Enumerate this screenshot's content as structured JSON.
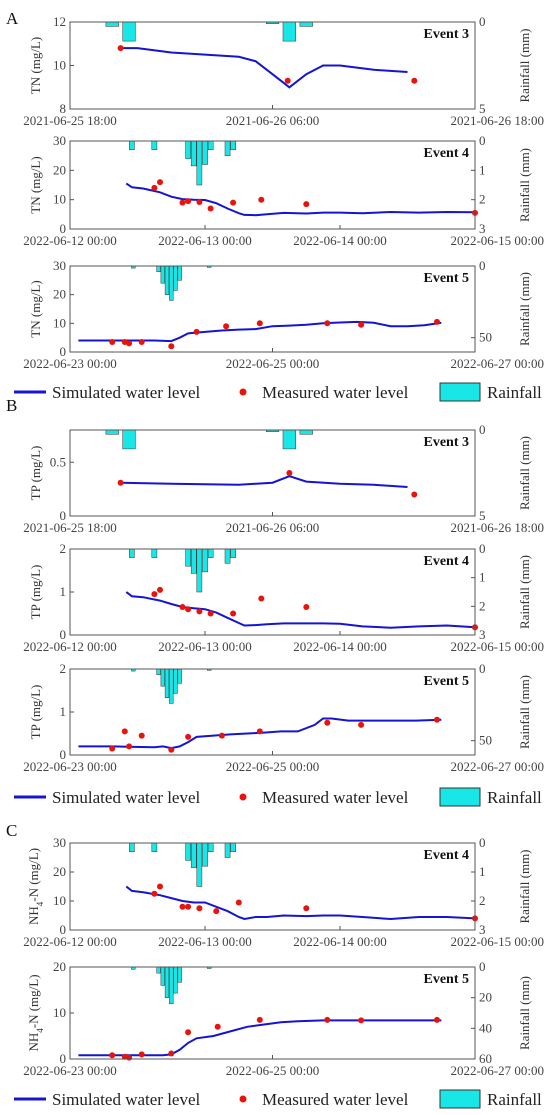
{
  "legend": {
    "simulated": "Simulated water level",
    "measured": "Measured water level",
    "rainfall": "Rainfall"
  },
  "colors": {
    "simulated": "#1414d2",
    "measured": "#e8140c",
    "rainfall_fill": "#19e6e6",
    "rainfall_stroke": "#333333",
    "axis": "#555555"
  },
  "sections": [
    {
      "label": "A"
    },
    {
      "label": "B"
    },
    {
      "label": "C"
    }
  ],
  "chart_data": [
    {
      "type": "line",
      "panel": "A",
      "event": "Event 3",
      "ylabel": "TN (mg/L)",
      "y2label": "Rainfall (mm)",
      "xlim": [
        "2021-06-25 18:00",
        "2021-06-26 18:00"
      ],
      "xrange_hours": 24,
      "xticks": [
        {
          "h": 0,
          "label": "2021-06-25 18:00"
        },
        {
          "h": 12,
          "label": "2021-06-26 06:00"
        },
        {
          "h": 24,
          "label": "2021-06-26 18:00"
        }
      ],
      "ylim": [
        8,
        12
      ],
      "yticks": [
        8,
        10,
        12
      ],
      "y2lim": [
        0,
        5
      ],
      "y2ticks": [
        0,
        5
      ],
      "simulated": {
        "x_hours": [
          3,
          4,
          6,
          8,
          10,
          11,
          12,
          13,
          14,
          15,
          16,
          18,
          20
        ],
        "y": [
          10.8,
          10.8,
          10.6,
          10.5,
          10.4,
          10.2,
          9.6,
          9.0,
          9.6,
          10.0,
          10.0,
          9.8,
          9.7
        ]
      },
      "measured": {
        "x_hours": [
          3,
          12.9,
          20.4
        ],
        "y": [
          10.8,
          9.3,
          9.3
        ]
      },
      "rainfall": {
        "x_hours": [
          2.5,
          3.5,
          12,
          13,
          14
        ],
        "y": [
          0.25,
          1.1,
          0.1,
          1.1,
          0.25
        ]
      }
    },
    {
      "type": "line",
      "panel": "A",
      "event": "Event 4",
      "ylabel": "TN (mg/L)",
      "y2label": "Rainfall (mm)",
      "xlim": [
        "2022-06-12 00:00",
        "2022-06-15 00:00"
      ],
      "xrange_hours": 72,
      "xticks": [
        {
          "h": 0,
          "label": "2022-06-12 00:00"
        },
        {
          "h": 24,
          "label": "2022-06-13 00:00"
        },
        {
          "h": 48,
          "label": "2022-06-14 00:00"
        },
        {
          "h": 72,
          "label": "2022-06-15 00:00"
        }
      ],
      "ylim": [
        0,
        30
      ],
      "yticks": [
        0,
        10,
        20,
        30
      ],
      "y2lim": [
        0,
        3
      ],
      "y2ticks": [
        0,
        1,
        2,
        3
      ],
      "simulated": {
        "x_hours": [
          10,
          11,
          13,
          16,
          18,
          20,
          22,
          24,
          26,
          28,
          30,
          31,
          33,
          35,
          38,
          42,
          45,
          48,
          52,
          57,
          62,
          67,
          72
        ],
        "y": [
          15.5,
          14.2,
          13.8,
          12.5,
          11.0,
          10.2,
          10.0,
          9.9,
          8.8,
          7.0,
          5.4,
          4.8,
          4.7,
          5.0,
          5.5,
          5.3,
          5.6,
          5.6,
          5.4,
          5.8,
          5.6,
          5.8,
          5.7
        ]
      },
      "measured": {
        "x_hours": [
          15,
          16,
          20,
          21,
          23,
          25,
          29,
          34,
          42,
          72
        ],
        "y": [
          14.0,
          16.0,
          9.0,
          9.5,
          9.2,
          7.0,
          9.0,
          10.0,
          8.5,
          5.5
        ]
      },
      "rainfall": {
        "x_hours": [
          11,
          15,
          21,
          22,
          23,
          24,
          25,
          28,
          29
        ],
        "y": [
          0.3,
          0.3,
          0.6,
          0.85,
          1.5,
          0.8,
          0.3,
          0.5,
          0.3
        ]
      }
    },
    {
      "type": "line",
      "panel": "A",
      "event": "Event 5",
      "ylabel": "TN (mg/L)",
      "y2label": "Rainfall (mm)",
      "xlim": [
        "2022-06-23 00:00",
        "2022-06-27 00:00"
      ],
      "xrange_hours": 96,
      "xticks": [
        {
          "h": 0,
          "label": "2022-06-23 00:00"
        },
        {
          "h": 48,
          "label": "2022-06-25 00:00"
        },
        {
          "h": 96,
          "label": "2022-06-27 00:00"
        }
      ],
      "ylim": [
        0,
        30
      ],
      "yticks": [
        0,
        10,
        20,
        30
      ],
      "y2lim": [
        0,
        60
      ],
      "y2ticks": [
        0,
        50
      ],
      "simulated": {
        "x_hours": [
          2,
          10,
          20,
          24,
          26,
          28,
          32,
          36,
          40,
          44,
          48,
          52,
          56,
          60,
          64,
          68,
          72,
          76,
          80,
          84,
          88
        ],
        "y": [
          4.0,
          4.0,
          4.0,
          3.8,
          5.0,
          6.5,
          7.0,
          7.5,
          7.8,
          8.0,
          9.0,
          9.2,
          9.5,
          10.0,
          10.3,
          10.5,
          10.2,
          9.0,
          9.0,
          9.3,
          10.2
        ]
      },
      "measured": {
        "x_hours": [
          10,
          13,
          14,
          17,
          24,
          30,
          37,
          45,
          61,
          69,
          87
        ],
        "y": [
          3.5,
          3.5,
          3.0,
          3.5,
          2.0,
          7.0,
          9.0,
          10.0,
          10.0,
          9.5,
          10.5
        ]
      },
      "rainfall": {
        "x_hours": [
          15,
          21,
          22,
          23,
          24,
          25,
          26,
          33
        ],
        "y": [
          1.5,
          4,
          12,
          20,
          24,
          17,
          10,
          1
        ]
      }
    },
    {
      "type": "line",
      "panel": "B",
      "event": "Event 3",
      "ylabel": "TP (mg/L)",
      "y2label": "Rainfall (mm)",
      "xlim": [
        "2021-06-25 18:00",
        "2021-06-26 18:00"
      ],
      "xrange_hours": 24,
      "xticks": [
        {
          "h": 0,
          "label": "2021-06-25 18:00"
        },
        {
          "h": 12,
          "label": "2021-06-26 06:00"
        },
        {
          "h": 24,
          "label": "2021-06-26 18:00"
        }
      ],
      "ylim": [
        0,
        0.8
      ],
      "yticks": [
        0,
        0.5
      ],
      "y2lim": [
        0,
        5
      ],
      "y2ticks": [
        0,
        5
      ],
      "simulated": {
        "x_hours": [
          3,
          6,
          10,
          12,
          13,
          14,
          16,
          18,
          20
        ],
        "y": [
          0.31,
          0.3,
          0.29,
          0.31,
          0.37,
          0.32,
          0.3,
          0.29,
          0.27
        ]
      },
      "measured": {
        "x_hours": [
          3,
          13,
          20.4
        ],
        "y": [
          0.31,
          0.4,
          0.2
        ]
      },
      "rainfall": {
        "x_hours": [
          2.5,
          3.5,
          12,
          13,
          14
        ],
        "y": [
          0.25,
          1.1,
          0.1,
          1.1,
          0.25
        ]
      }
    },
    {
      "type": "line",
      "panel": "B",
      "event": "Event 4",
      "ylabel": "TP (mg/L)",
      "y2label": "Rainfall (mm)",
      "xlim": [
        "2022-06-12 00:00",
        "2022-06-15 00:00"
      ],
      "xrange_hours": 72,
      "xticks": [
        {
          "h": 0,
          "label": "2022-06-12 00:00"
        },
        {
          "h": 24,
          "label": "2022-06-13 00:00"
        },
        {
          "h": 48,
          "label": "2022-06-14 00:00"
        },
        {
          "h": 72,
          "label": "2022-06-15 00:00"
        }
      ],
      "ylim": [
        0,
        2
      ],
      "yticks": [
        0,
        1,
        2
      ],
      "y2lim": [
        0,
        3
      ],
      "y2ticks": [
        0,
        1,
        2,
        3
      ],
      "simulated": {
        "x_hours": [
          10,
          11,
          13,
          16,
          18,
          20,
          22,
          24,
          26,
          28,
          30,
          31,
          33,
          35,
          38,
          42,
          45,
          48,
          52,
          57,
          62,
          67,
          72
        ],
        "y": [
          1.0,
          0.9,
          0.88,
          0.8,
          0.72,
          0.65,
          0.62,
          0.6,
          0.52,
          0.4,
          0.28,
          0.22,
          0.23,
          0.25,
          0.27,
          0.27,
          0.27,
          0.26,
          0.2,
          0.17,
          0.2,
          0.22,
          0.18
        ]
      },
      "measured": {
        "x_hours": [
          15,
          16,
          20,
          21,
          23,
          25,
          29,
          34,
          42,
          72
        ],
        "y": [
          0.95,
          1.05,
          0.65,
          0.6,
          0.55,
          0.5,
          0.5,
          0.85,
          0.65,
          0.18
        ]
      },
      "rainfall": {
        "x_hours": [
          11,
          15,
          21,
          22,
          23,
          24,
          25,
          28,
          29
        ],
        "y": [
          0.3,
          0.3,
          0.6,
          0.85,
          1.5,
          0.8,
          0.3,
          0.5,
          0.3
        ]
      }
    },
    {
      "type": "line",
      "panel": "B",
      "event": "Event 5",
      "ylabel": "TP (mg/L)",
      "y2label": "Rainfall (mm)",
      "xlim": [
        "2022-06-23 00:00",
        "2022-06-27 00:00"
      ],
      "xrange_hours": 96,
      "xticks": [
        {
          "h": 0,
          "label": "2022-06-23 00:00"
        },
        {
          "h": 48,
          "label": "2022-06-25 00:00"
        },
        {
          "h": 96,
          "label": "2022-06-27 00:00"
        }
      ],
      "ylim": [
        0,
        2
      ],
      "yticks": [
        0,
        1,
        2
      ],
      "y2lim": [
        0,
        60
      ],
      "y2ticks": [
        0,
        50
      ],
      "simulated": {
        "x_hours": [
          2,
          10,
          20,
          22,
          24,
          26,
          28,
          30,
          34,
          38,
          42,
          46,
          50,
          54,
          58,
          60,
          62,
          66,
          70,
          76,
          82,
          88
        ],
        "y": [
          0.2,
          0.2,
          0.18,
          0.2,
          0.16,
          0.2,
          0.3,
          0.42,
          0.45,
          0.48,
          0.5,
          0.52,
          0.55,
          0.55,
          0.7,
          0.85,
          0.85,
          0.8,
          0.8,
          0.8,
          0.8,
          0.82
        ]
      },
      "measured": {
        "x_hours": [
          10,
          13,
          14,
          17,
          24,
          28,
          36,
          45,
          61,
          69,
          87
        ],
        "y": [
          0.15,
          0.55,
          0.2,
          0.45,
          0.12,
          0.42,
          0.45,
          0.55,
          0.75,
          0.7,
          0.82
        ]
      },
      "rainfall": {
        "x_hours": [
          15,
          21,
          22,
          23,
          24,
          25,
          26,
          33
        ],
        "y": [
          1.5,
          4,
          12,
          20,
          24,
          17,
          10,
          1
        ]
      }
    },
    {
      "type": "line",
      "panel": "C",
      "event": "Event 4",
      "ylabel": "NH4-N (mg/L)",
      "y2label": "Rainfall (mm)",
      "xlim": [
        "2022-06-12 00:00",
        "2022-06-15 00:00"
      ],
      "xrange_hours": 72,
      "xticks": [
        {
          "h": 0,
          "label": "2022-06-12 00:00"
        },
        {
          "h": 24,
          "label": "2022-06-13 00:00"
        },
        {
          "h": 48,
          "label": "2022-06-14 00:00"
        },
        {
          "h": 72,
          "label": "2022-06-15 00:00"
        }
      ],
      "ylim": [
        0,
        30
      ],
      "yticks": [
        0,
        10,
        20,
        30
      ],
      "y2lim": [
        0,
        3
      ],
      "y2ticks": [
        0,
        1,
        2,
        3
      ],
      "simulated": {
        "x_hours": [
          10,
          11,
          13,
          16,
          18,
          20,
          22,
          24,
          26,
          28,
          30,
          31,
          33,
          35,
          38,
          42,
          45,
          48,
          52,
          57,
          62,
          67,
          72
        ],
        "y": [
          15.0,
          13.5,
          13.0,
          12.0,
          11.0,
          10.0,
          9.5,
          9.5,
          8.0,
          6.5,
          4.5,
          3.8,
          4.5,
          4.5,
          5.0,
          4.8,
          5.0,
          5.0,
          4.5,
          3.8,
          4.5,
          4.5,
          4.0
        ]
      },
      "measured": {
        "x_hours": [
          15,
          16,
          20,
          21,
          23,
          26,
          30,
          42,
          72
        ],
        "y": [
          12.5,
          15.0,
          8.0,
          8.0,
          7.5,
          6.5,
          9.5,
          7.5,
          4.0
        ]
      },
      "rainfall": {
        "x_hours": [
          11,
          15,
          21,
          22,
          23,
          24,
          25,
          28,
          29
        ],
        "y": [
          0.3,
          0.3,
          0.6,
          0.85,
          1.5,
          0.8,
          0.3,
          0.5,
          0.3
        ]
      }
    },
    {
      "type": "line",
      "panel": "C",
      "event": "Event 5",
      "ylabel": "NH4-N (mg/L)",
      "y2label": "Rainfall (mm)",
      "xlim": [
        "2022-06-23 00:00",
        "2022-06-27 00:00"
      ],
      "xrange_hours": 96,
      "xticks": [
        {
          "h": 0,
          "label": "2022-06-23 00:00"
        },
        {
          "h": 48,
          "label": "2022-06-25 00:00"
        },
        {
          "h": 96,
          "label": "2022-06-27 00:00"
        }
      ],
      "ylim": [
        0,
        20
      ],
      "yticks": [
        0,
        10,
        20
      ],
      "y2lim": [
        0,
        60
      ],
      "y2ticks": [
        0,
        20,
        40,
        60
      ],
      "simulated": {
        "x_hours": [
          2,
          10,
          20,
          22,
          24,
          26,
          28,
          30,
          34,
          38,
          42,
          46,
          50,
          54,
          60,
          70,
          80,
          88
        ],
        "y": [
          0.8,
          0.8,
          0.8,
          0.8,
          1.0,
          2.0,
          3.5,
          4.5,
          5.0,
          6.0,
          7.0,
          7.5,
          8.0,
          8.2,
          8.4,
          8.4,
          8.4,
          8.4
        ]
      },
      "measured": {
        "x_hours": [
          10,
          13,
          14,
          17,
          24,
          28,
          35,
          45,
          61,
          69,
          87
        ],
        "y": [
          0.8,
          0.5,
          0.3,
          1.0,
          1.2,
          5.8,
          7.0,
          8.5,
          8.5,
          8.4,
          8.5
        ]
      },
      "rainfall": {
        "x_hours": [
          15,
          21,
          22,
          23,
          24,
          25,
          26,
          33
        ],
        "y": [
          1.5,
          4,
          12,
          20,
          24,
          17,
          10,
          1
        ]
      }
    }
  ]
}
